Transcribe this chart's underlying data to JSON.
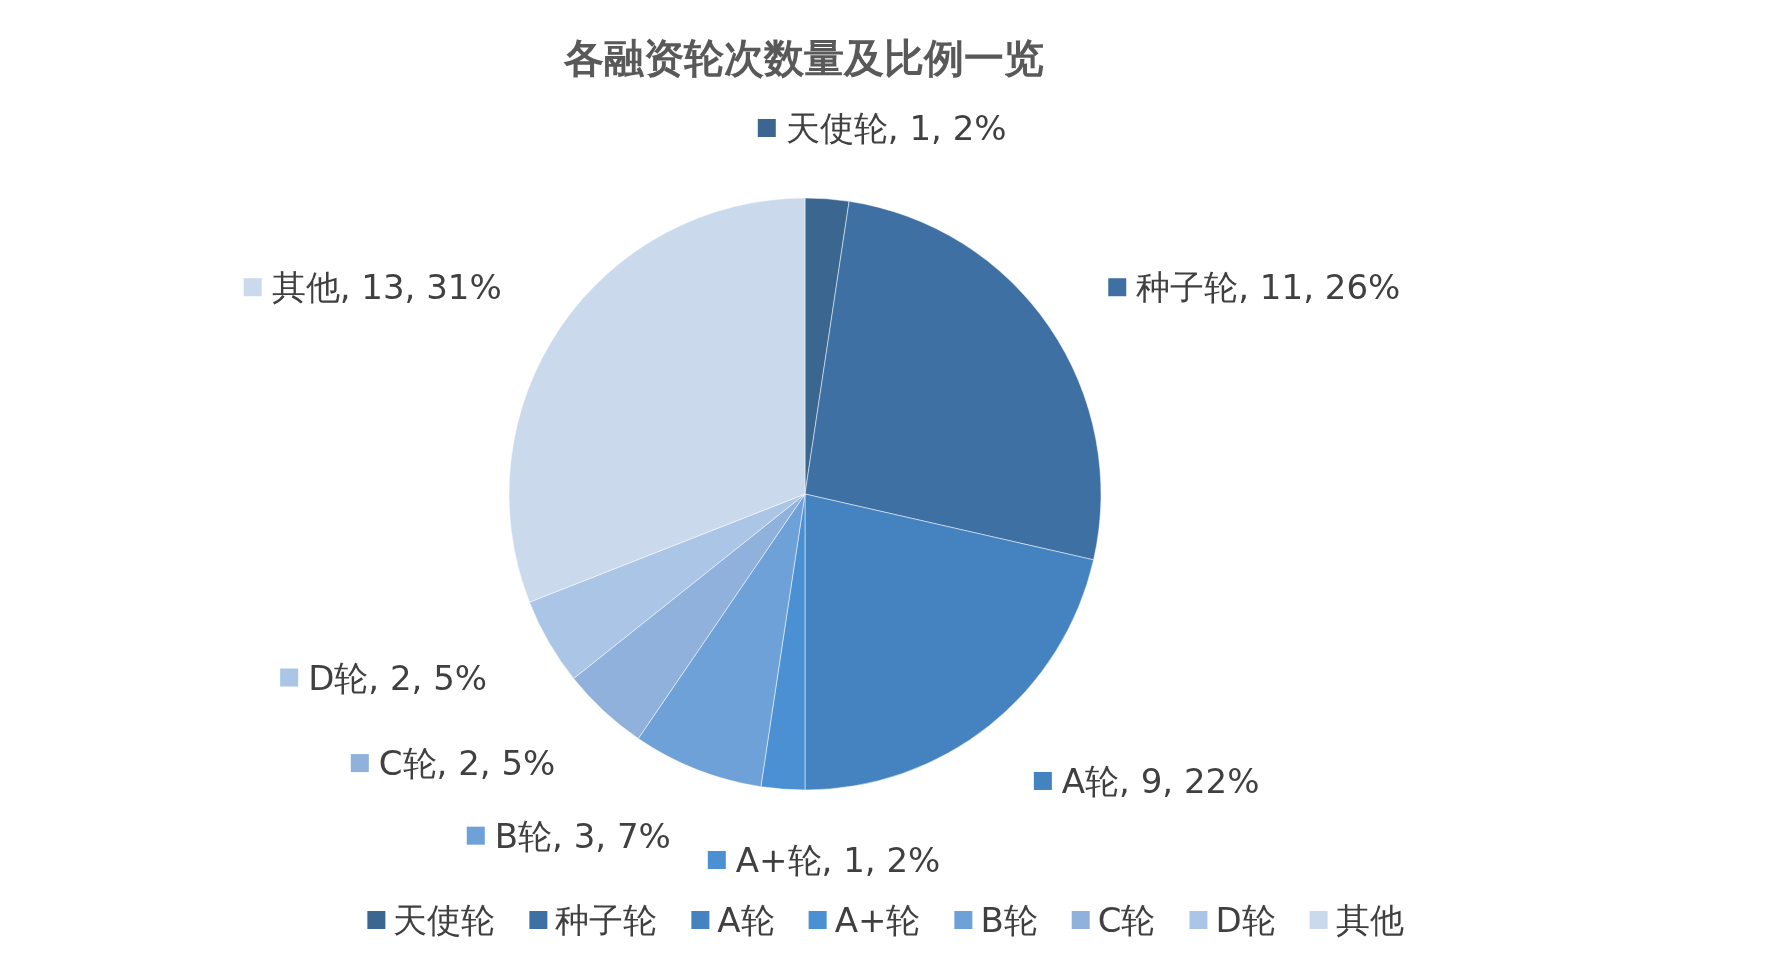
{
  "chart_data": {
    "type": "pie",
    "title": "各融资轮次数量及比例一览",
    "categories": [
      "天使轮",
      "种子轮",
      "A轮",
      "A+轮",
      "B轮",
      "C轮",
      "D轮",
      "其他"
    ],
    "values": [
      1,
      11,
      9,
      1,
      3,
      2,
      2,
      13
    ],
    "value_labels": [
      "天使轮, 1, 2%",
      "种子轮, 11, 26%",
      "A轮, 9, 22%",
      "A+轮, 1, 2%",
      "B轮, 3, 7%",
      "C轮, 2, 5%",
      "D轮, 2, 5%",
      "其他, 13, 31%"
    ],
    "colors": [
      "#3a6690",
      "#3e70a4",
      "#4582c0",
      "#4a90d2",
      "#6fa1d9",
      "#8fb1dc",
      "#abc5e6",
      "#cbd9ed"
    ],
    "legend": "bottom"
  }
}
